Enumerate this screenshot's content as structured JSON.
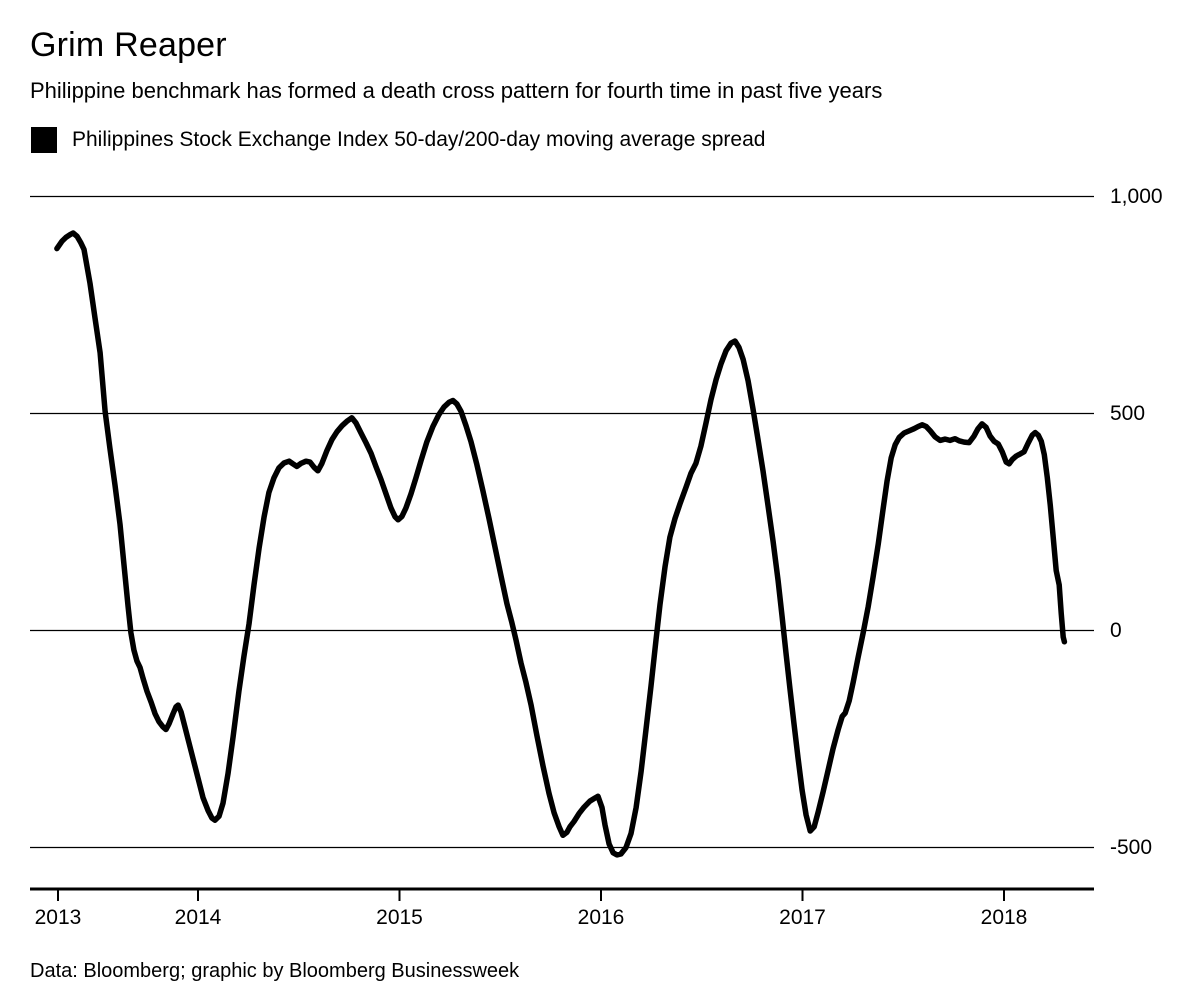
{
  "header": {
    "title": "Grim Reaper",
    "subtitle": "Philippine benchmark has formed a death cross pattern for fourth time in past five years"
  },
  "legend": {
    "swatch_color": "#000000",
    "label": "Philippines Stock Exchange Index 50-day/200-day moving average spread"
  },
  "footer": {
    "source": "Data: Bloomberg; graphic by Bloomberg Businessweek"
  },
  "chart_data": {
    "type": "line",
    "title": "Grim Reaper",
    "subtitle": "Philippine benchmark has formed a death cross pattern for fourth time in past five years",
    "xlabel": "",
    "ylabel": "",
    "grid": true,
    "legend_position": "top-left",
    "line_color": "#000000",
    "x_domain": [
      2013.17,
      2018.45
    ],
    "y_domain": [
      -595,
      1090
    ],
    "y_ticks": [
      {
        "label": "1,000",
        "value": 1000
      },
      {
        "label": "500",
        "value": 500
      },
      {
        "label": "0",
        "value": 0
      },
      {
        "label": "-500",
        "value": -500
      }
    ],
    "x_ticks": [
      {
        "label": "2013",
        "year": 2013.305
      },
      {
        "label": "2014",
        "year": 2014
      },
      {
        "label": "2015",
        "year": 2015
      },
      {
        "label": "2016",
        "year": 2016
      },
      {
        "label": "2017",
        "year": 2017
      },
      {
        "label": "2018",
        "year": 2018
      }
    ],
    "series": [
      {
        "name": "Philippines Stock Exchange Index 50-day/200-day moving average spread",
        "color": "#000000",
        "points": [
          [
            2013.3,
            880
          ],
          [
            2013.325,
            897
          ],
          [
            2013.345,
            906
          ],
          [
            2013.365,
            912
          ],
          [
            2013.38,
            916
          ],
          [
            2013.4,
            908
          ],
          [
            2013.419,
            893
          ],
          [
            2013.434,
            878
          ],
          [
            2013.464,
            800
          ],
          [
            2013.489,
            720
          ],
          [
            2013.514,
            640
          ],
          [
            2013.539,
            505
          ],
          [
            2013.563,
            420
          ],
          [
            2013.588,
            335
          ],
          [
            2013.613,
            245
          ],
          [
            2013.637,
            130
          ],
          [
            2013.653,
            55
          ],
          [
            2013.667,
            -5
          ],
          [
            2013.682,
            -45
          ],
          [
            2013.697,
            -70
          ],
          [
            2013.712,
            -85
          ],
          [
            2013.727,
            -110
          ],
          [
            2013.747,
            -140
          ],
          [
            2013.767,
            -165
          ],
          [
            2013.787,
            -192
          ],
          [
            2013.806,
            -210
          ],
          [
            2013.826,
            -222
          ],
          [
            2013.841,
            -228
          ],
          [
            2013.856,
            -215
          ],
          [
            2013.876,
            -192
          ],
          [
            2013.891,
            -176
          ],
          [
            2013.901,
            -172
          ],
          [
            2013.916,
            -188
          ],
          [
            2013.935,
            -222
          ],
          [
            2013.955,
            -258
          ],
          [
            2013.975,
            -295
          ],
          [
            2014.0,
            -340
          ],
          [
            2014.025,
            -385
          ],
          [
            2014.05,
            -415
          ],
          [
            2014.069,
            -432
          ],
          [
            2014.084,
            -437
          ],
          [
            2014.104,
            -428
          ],
          [
            2014.124,
            -398
          ],
          [
            2014.149,
            -330
          ],
          [
            2014.174,
            -245
          ],
          [
            2014.203,
            -140
          ],
          [
            2014.228,
            -60
          ],
          [
            2014.253,
            15
          ],
          [
            2014.278,
            105
          ],
          [
            2014.303,
            190
          ],
          [
            2014.328,
            262
          ],
          [
            2014.352,
            318
          ],
          [
            2014.377,
            352
          ],
          [
            2014.402,
            375
          ],
          [
            2014.427,
            386
          ],
          [
            2014.452,
            390
          ],
          [
            2014.471,
            384
          ],
          [
            2014.491,
            378
          ],
          [
            2014.511,
            385
          ],
          [
            2014.536,
            390
          ],
          [
            2014.556,
            388
          ],
          [
            2014.576,
            376
          ],
          [
            2014.595,
            368
          ],
          [
            2014.615,
            385
          ],
          [
            2014.64,
            415
          ],
          [
            2014.665,
            440
          ],
          [
            2014.69,
            458
          ],
          [
            2014.715,
            472
          ],
          [
            2014.739,
            482
          ],
          [
            2014.764,
            490
          ],
          [
            2014.784,
            478
          ],
          [
            2014.809,
            455
          ],
          [
            2014.834,
            432
          ],
          [
            2014.859,
            408
          ],
          [
            2014.883,
            378
          ],
          [
            2014.908,
            348
          ],
          [
            2014.933,
            315
          ],
          [
            2014.958,
            282
          ],
          [
            2014.978,
            262
          ],
          [
            2014.993,
            255
          ],
          [
            2015.012,
            263
          ],
          [
            2015.032,
            282
          ],
          [
            2015.057,
            315
          ],
          [
            2015.082,
            352
          ],
          [
            2015.107,
            392
          ],
          [
            2015.136,
            435
          ],
          [
            2015.166,
            470
          ],
          [
            2015.196,
            498
          ],
          [
            2015.221,
            515
          ],
          [
            2015.246,
            526
          ],
          [
            2015.265,
            530
          ],
          [
            2015.285,
            522
          ],
          [
            2015.305,
            505
          ],
          [
            2015.33,
            472
          ],
          [
            2015.355,
            435
          ],
          [
            2015.384,
            382
          ],
          [
            2015.414,
            322
          ],
          [
            2015.444,
            258
          ],
          [
            2015.474,
            192
          ],
          [
            2015.504,
            125
          ],
          [
            2015.533,
            62
          ],
          [
            2015.558,
            18
          ],
          [
            2015.578,
            -22
          ],
          [
            2015.603,
            -75
          ],
          [
            2015.628,
            -120
          ],
          [
            2015.653,
            -172
          ],
          [
            2015.682,
            -242
          ],
          [
            2015.712,
            -312
          ],
          [
            2015.742,
            -375
          ],
          [
            2015.767,
            -420
          ],
          [
            2015.792,
            -452
          ],
          [
            2015.811,
            -472
          ],
          [
            2015.831,
            -465
          ],
          [
            2015.846,
            -452
          ],
          [
            2015.866,
            -440
          ],
          [
            2015.891,
            -422
          ],
          [
            2015.916,
            -407
          ],
          [
            2015.945,
            -393
          ],
          [
            2015.97,
            -386
          ],
          [
            2015.985,
            -382
          ],
          [
            2016.005,
            -408
          ],
          [
            2016.02,
            -448
          ],
          [
            2016.04,
            -492
          ],
          [
            2016.06,
            -512
          ],
          [
            2016.079,
            -517
          ],
          [
            2016.099,
            -515
          ],
          [
            2016.124,
            -500
          ],
          [
            2016.149,
            -468
          ],
          [
            2016.174,
            -408
          ],
          [
            2016.199,
            -325
          ],
          [
            2016.223,
            -230
          ],
          [
            2016.248,
            -128
          ],
          [
            2016.273,
            -22
          ],
          [
            2016.293,
            60
          ],
          [
            2016.318,
            148
          ],
          [
            2016.342,
            215
          ],
          [
            2016.367,
            258
          ],
          [
            2016.392,
            292
          ],
          [
            2016.422,
            330
          ],
          [
            2016.446,
            362
          ],
          [
            2016.471,
            385
          ],
          [
            2016.496,
            425
          ],
          [
            2016.521,
            478
          ],
          [
            2016.546,
            532
          ],
          [
            2016.571,
            578
          ],
          [
            2016.596,
            615
          ],
          [
            2016.621,
            645
          ],
          [
            2016.645,
            662
          ],
          [
            2016.665,
            667
          ],
          [
            2016.685,
            652
          ],
          [
            2016.705,
            625
          ],
          [
            2016.73,
            575
          ],
          [
            2016.754,
            512
          ],
          [
            2016.779,
            440
          ],
          [
            2016.804,
            368
          ],
          [
            2016.829,
            288
          ],
          [
            2016.854,
            205
          ],
          [
            2016.879,
            115
          ],
          [
            2016.899,
            32
          ],
          [
            2016.918,
            -52
          ],
          [
            2016.938,
            -135
          ],
          [
            2016.958,
            -215
          ],
          [
            2016.978,
            -295
          ],
          [
            2016.998,
            -368
          ],
          [
            2017.018,
            -425
          ],
          [
            2017.038,
            -462
          ],
          [
            2017.058,
            -452
          ],
          [
            2017.078,
            -418
          ],
          [
            2017.102,
            -372
          ],
          [
            2017.127,
            -322
          ],
          [
            2017.152,
            -272
          ],
          [
            2017.177,
            -228
          ],
          [
            2017.197,
            -198
          ],
          [
            2017.212,
            -190
          ],
          [
            2017.232,
            -162
          ],
          [
            2017.252,
            -118
          ],
          [
            2017.276,
            -62
          ],
          [
            2017.301,
            -5
          ],
          [
            2017.326,
            55
          ],
          [
            2017.351,
            125
          ],
          [
            2017.376,
            200
          ],
          [
            2017.4,
            280
          ],
          [
            2017.42,
            345
          ],
          [
            2017.44,
            398
          ],
          [
            2017.46,
            428
          ],
          [
            2017.48,
            445
          ],
          [
            2017.504,
            455
          ],
          [
            2017.529,
            460
          ],
          [
            2017.554,
            465
          ],
          [
            2017.574,
            470
          ],
          [
            2017.594,
            474
          ],
          [
            2017.614,
            470
          ],
          [
            2017.634,
            460
          ],
          [
            2017.658,
            446
          ],
          [
            2017.683,
            438
          ],
          [
            2017.708,
            441
          ],
          [
            2017.732,
            438
          ],
          [
            2017.757,
            442
          ],
          [
            2017.777,
            437
          ],
          [
            2017.802,
            434
          ],
          [
            2017.827,
            433
          ],
          [
            2017.851,
            448
          ],
          [
            2017.871,
            465
          ],
          [
            2017.891,
            476
          ],
          [
            2017.911,
            468
          ],
          [
            2017.931,
            448
          ],
          [
            2017.951,
            436
          ],
          [
            2017.971,
            430
          ],
          [
            2017.991,
            412
          ],
          [
            2018.011,
            388
          ],
          [
            2018.026,
            384
          ],
          [
            2018.041,
            394
          ],
          [
            2018.061,
            402
          ],
          [
            2018.081,
            407
          ],
          [
            2018.1,
            412
          ],
          [
            2018.12,
            432
          ],
          [
            2018.14,
            450
          ],
          [
            2018.155,
            456
          ],
          [
            2018.17,
            450
          ],
          [
            2018.185,
            436
          ],
          [
            2018.2,
            405
          ],
          [
            2018.215,
            352
          ],
          [
            2018.23,
            288
          ],
          [
            2018.244,
            215
          ],
          [
            2018.259,
            138
          ],
          [
            2018.274,
            105
          ],
          [
            2018.284,
            40
          ],
          [
            2018.294,
            -15
          ],
          [
            2018.3,
            -26
          ]
        ]
      }
    ]
  }
}
